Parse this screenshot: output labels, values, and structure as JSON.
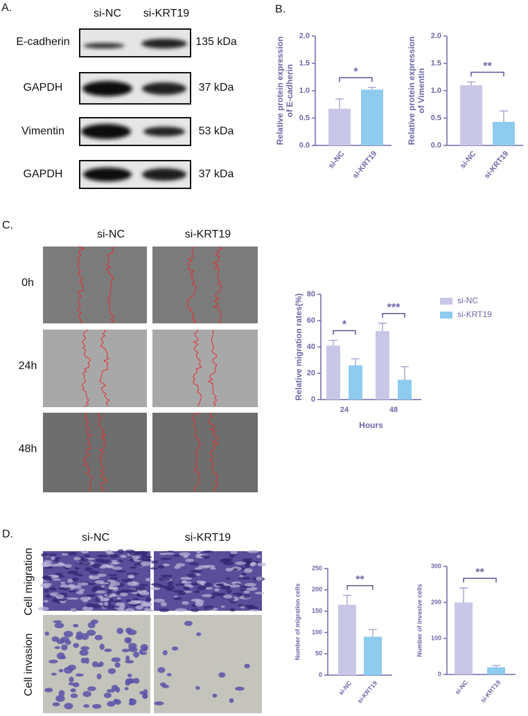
{
  "panel_a": {
    "label": "A.",
    "columns": [
      "si-NC",
      "si-KRT19"
    ],
    "rows": [
      {
        "protein": "E-cadherin",
        "size": "135 kDa"
      },
      {
        "protein": "GAPDH",
        "size": "37 kDa"
      },
      {
        "protein": "Vimentin",
        "size": "53 kDa"
      },
      {
        "protein": "GAPDH",
        "size": "37 kDa"
      }
    ]
  },
  "panel_b": {
    "label": "B."
  },
  "panel_c": {
    "label": "C.",
    "columns": [
      "si-NC",
      "si-KRT19"
    ],
    "rows": [
      "0h",
      "24h",
      "48h"
    ]
  },
  "panel_d": {
    "label": "D.",
    "columns": [
      "si-NC",
      "si-KRT19"
    ],
    "rows": [
      "Cell migration",
      "Cell invasion"
    ]
  },
  "chart_data": [
    {
      "type": "bar",
      "y_label": [
        "Relative protein expression",
        "of E-cadherin"
      ],
      "categories": [
        "si-NC",
        "si-KRT19"
      ],
      "colors": [
        "#c9c7e8",
        "#8fcbef"
      ],
      "values": [
        0.67,
        1.02
      ],
      "errors": [
        0.18,
        0.04
      ],
      "ylim": [
        0,
        2
      ],
      "yticks": [
        {
          "value": 0,
          "label": "0.0"
        },
        {
          "value": 0.5,
          "label": "0.5"
        },
        {
          "value": 1,
          "label": "1.0"
        },
        {
          "value": 1.5,
          "label": "1.5"
        },
        {
          "value": 2,
          "label": "2.0"
        }
      ],
      "significance": [
        "*"
      ]
    },
    {
      "type": "bar",
      "y_label": [
        "Relative protein expression",
        "of Vimentin"
      ],
      "categories": [
        "si-NC",
        "si-KRT19"
      ],
      "colors": [
        "#c9c7e8",
        "#8fcbef"
      ],
      "values": [
        1.1,
        0.43
      ],
      "errors": [
        0.06,
        0.2
      ],
      "ylim": [
        0,
        2
      ],
      "yticks": [
        {
          "value": 0,
          "label": "0.0"
        },
        {
          "value": 0.5,
          "label": "0.5"
        },
        {
          "value": 1,
          "label": "1.0"
        },
        {
          "value": 1.5,
          "label": "1.5"
        },
        {
          "value": 2,
          "label": "2.0"
        }
      ],
      "significance": [
        "**"
      ]
    },
    {
      "type": "grouped-bar",
      "y_label": [
        "Relative migration rates(%)"
      ],
      "x_label": "Hours",
      "categories": [
        "24",
        "48"
      ],
      "series": [
        {
          "name": "si-NC",
          "color": "#c9c7e8",
          "values": [
            41,
            52
          ],
          "errors": [
            4,
            6
          ]
        },
        {
          "name": "si-KRT19",
          "color": "#8fcbef",
          "values": [
            26,
            15
          ],
          "errors": [
            5,
            10
          ]
        }
      ],
      "ylim": [
        0,
        80
      ],
      "yticks": [
        0,
        20,
        40,
        60,
        80
      ],
      "significance": [
        "*",
        "***"
      ],
      "legend": "top-right"
    },
    {
      "type": "bar",
      "y_label": [
        "Number of migration cells"
      ],
      "categories": [
        "si-NC",
        "si-KRT19"
      ],
      "colors": [
        "#c9c7e8",
        "#8fcbef"
      ],
      "values": [
        165,
        90
      ],
      "errors": [
        22,
        17
      ],
      "ylim": [
        0,
        250
      ],
      "yticks": [
        0,
        50,
        100,
        150,
        200,
        250
      ],
      "significance": [
        "**"
      ]
    },
    {
      "type": "bar",
      "y_label": [
        "Number of invasive cells"
      ],
      "categories": [
        "si-NC",
        "si-KRT19"
      ],
      "colors": [
        "#c9c7e8",
        "#8fcbef"
      ],
      "values": [
        200,
        20
      ],
      "errors": [
        40,
        5
      ],
      "ylim": [
        0,
        300
      ],
      "yticks": [
        0,
        100,
        200,
        300
      ],
      "significance": [
        "**"
      ]
    }
  ]
}
